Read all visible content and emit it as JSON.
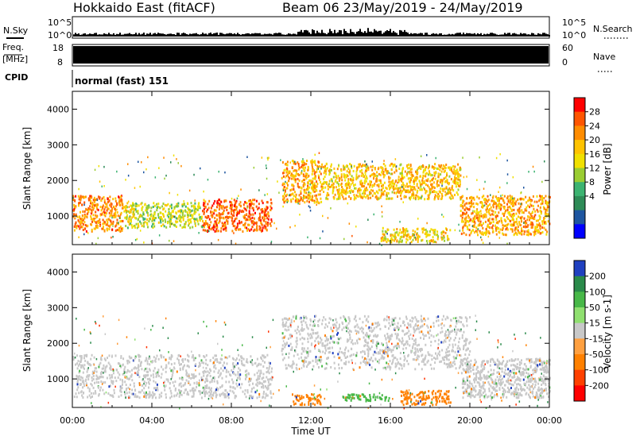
{
  "header": {
    "title": "Hokkaido East (fitACF)",
    "beam_date": "Beam 06  23/May/2019 - 24/May/2019"
  },
  "top_panels": {
    "nsky_label": "N.Sky",
    "freq_label": "Freq.",
    "freq_unit": "[MHz]",
    "cpid_label": "CPID",
    "nsearch_label": "N.Search",
    "nave_label": "Nave",
    "noise_ticks": [
      "10^5",
      "10^0"
    ],
    "freq_ticks": [
      "18",
      "8"
    ],
    "nave_ticks": [
      "60",
      "0"
    ],
    "cpid_text": "normal (fast) 151"
  },
  "xaxis": {
    "title": "Time UT",
    "ticks": [
      "00:00",
      "04:00",
      "08:00",
      "12:00",
      "16:00",
      "20:00",
      "00:00"
    ]
  },
  "chart_data": [
    {
      "type": "heatmap",
      "name": "power",
      "ylabel": "Slant Range [km]",
      "y_ticks": [
        1000,
        2000,
        3000,
        4000
      ],
      "ylim": [
        200,
        4500
      ],
      "xlim_hours": [
        0,
        24
      ],
      "colorbar_label": "Power [dB]",
      "colorbar_ticks": [
        "28",
        "24",
        "20",
        "16",
        "12",
        "8",
        "4"
      ],
      "colorbar_colors": [
        "#ff0000",
        "#ff5500",
        "#ff8c00",
        "#ffc300",
        "#f0e000",
        "#9acd32",
        "#3cb371",
        "#2e8b57",
        "#1e56a0",
        "#0000ff"
      ],
      "regions": [
        {
          "t": [
            0.0,
            2.5
          ],
          "r": [
            600,
            1600
          ],
          "level": 26
        },
        {
          "t": [
            2.5,
            6.5
          ],
          "r": [
            700,
            1400
          ],
          "level": 18
        },
        {
          "t": [
            6.5,
            10.0
          ],
          "r": [
            600,
            1500
          ],
          "level": 28
        },
        {
          "t": [
            10.5,
            12.5
          ],
          "r": [
            1400,
            2600
          ],
          "level": 24
        },
        {
          "t": [
            12.5,
            19.5
          ],
          "r": [
            1500,
            2500
          ],
          "level": 22
        },
        {
          "t": [
            19.5,
            24.0
          ],
          "r": [
            500,
            1600
          ],
          "level": 24
        },
        {
          "t": [
            15.5,
            19.0
          ],
          "r": [
            300,
            700
          ],
          "level": 20
        }
      ]
    },
    {
      "type": "heatmap",
      "name": "velocity",
      "ylabel": "Slant Range [km]",
      "y_ticks": [
        1000,
        2000,
        3000,
        4000
      ],
      "ylim": [
        200,
        4500
      ],
      "xlim_hours": [
        0,
        24
      ],
      "colorbar_label": "Velocity [m s-1]",
      "colorbar_ticks": [
        "200",
        "100",
        "50",
        "15",
        "-15",
        "-50",
        "-100",
        "-200"
      ],
      "colorbar_colors": [
        "#2040c0",
        "#2a8a4a",
        "#48b848",
        "#90e070",
        "#c8c8c8",
        "#ffa040",
        "#ff8000",
        "#ff4000",
        "#ff0000"
      ],
      "regions": [
        {
          "t": [
            0.0,
            10.0
          ],
          "r": [
            500,
            1700
          ],
          "level": 0
        },
        {
          "t": [
            10.5,
            20.0
          ],
          "r": [
            1300,
            2800
          ],
          "level": 0
        },
        {
          "t": [
            19.5,
            24.0
          ],
          "r": [
            500,
            1600
          ],
          "level": 0
        },
        {
          "t": [
            11.0,
            12.5
          ],
          "r": [
            300,
            600
          ],
          "level": -80
        },
        {
          "t": [
            16.5,
            19.0
          ],
          "r": [
            300,
            700
          ],
          "level": -70
        },
        {
          "t": [
            13.5,
            16.0
          ],
          "r": [
            400,
            600
          ],
          "level": 40
        }
      ]
    }
  ]
}
